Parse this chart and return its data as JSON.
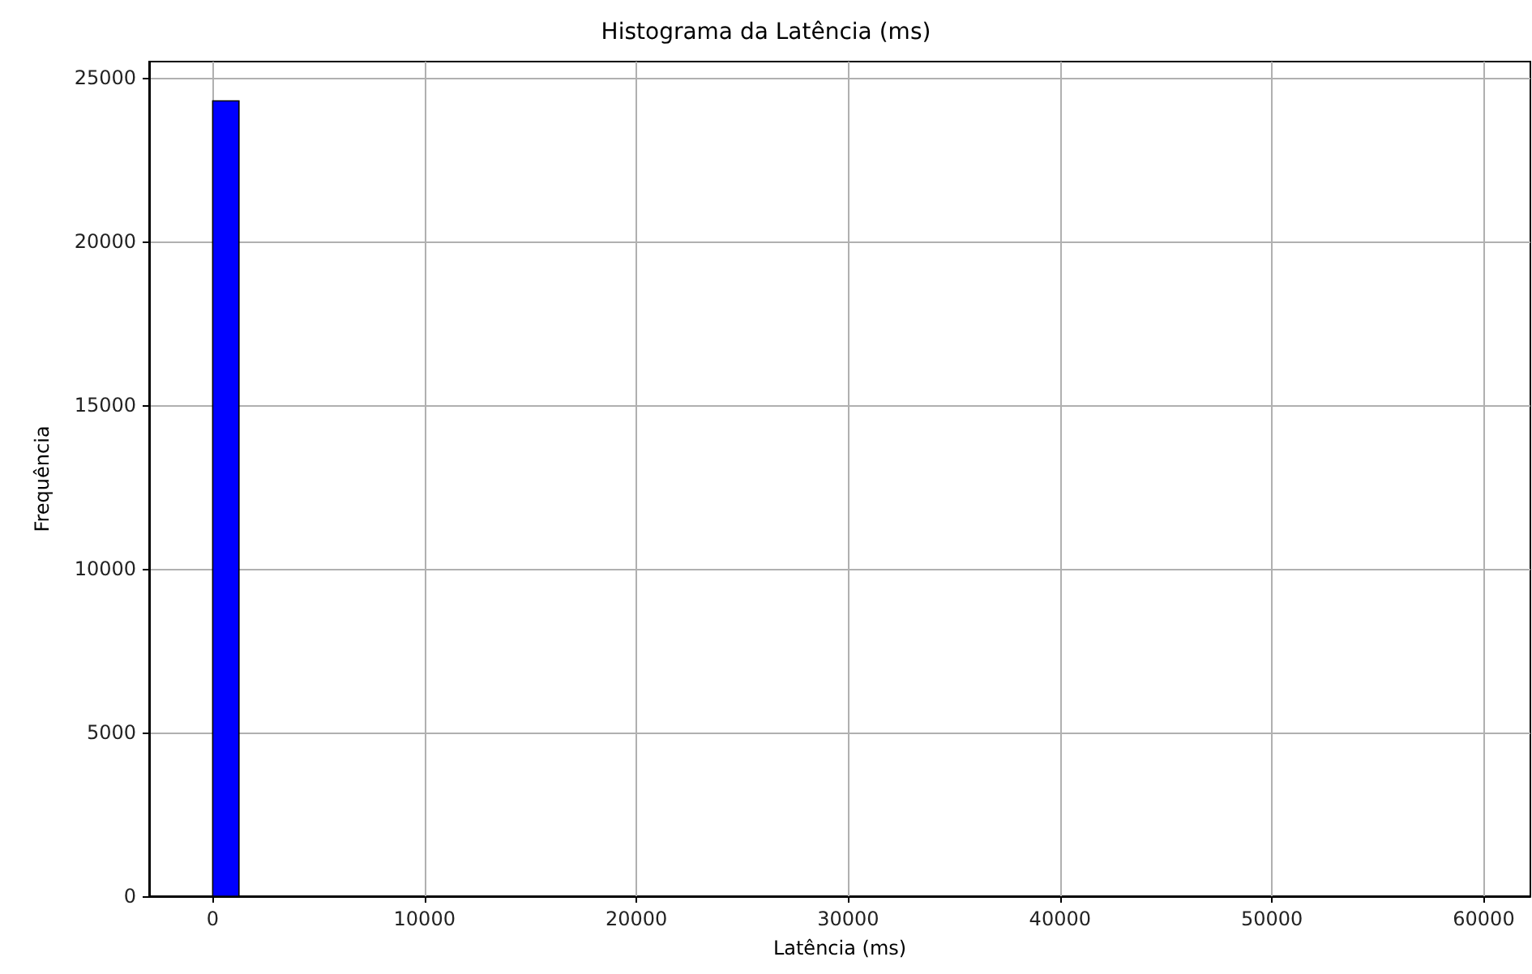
{
  "chart_data": {
    "type": "histogram",
    "title": "Histograma da Latência (ms)",
    "xlabel": "Latência (ms)",
    "ylabel": "Frequência",
    "bins": [
      0,
      1240,
      2480,
      3720,
      4960,
      6200,
      7440,
      8680,
      9920,
      11160,
      12400,
      13640,
      14880,
      16120,
      17360,
      18600,
      19840,
      21080,
      22320,
      23560,
      24800,
      26040,
      27280,
      28520,
      29760,
      31000,
      32240,
      33480,
      34720,
      35960,
      37200,
      38440,
      39680,
      40920,
      42160,
      43400,
      44640,
      45880,
      47120,
      48360,
      49600,
      50840,
      52080,
      53320,
      54560,
      55800,
      57040,
      58280,
      59520,
      60760,
      62000
    ],
    "values": [
      24300,
      0,
      0,
      0,
      0,
      0,
      0,
      0,
      0,
      0,
      0,
      0,
      0,
      0,
      0,
      0,
      0,
      0,
      0,
      0,
      0,
      0,
      0,
      0,
      0,
      0,
      0,
      0,
      0,
      0,
      0,
      0,
      0,
      0,
      0,
      0,
      0,
      0,
      0,
      0,
      0,
      0,
      0,
      0,
      0,
      0,
      0,
      0,
      0,
      0
    ],
    "color": "#0000ff",
    "xlim": [
      -3000,
      62200
    ],
    "xticks": [
      0,
      10000,
      20000,
      30000,
      40000,
      50000,
      60000
    ],
    "ylim": [
      0,
      25500
    ],
    "yticks": [
      0,
      5000,
      10000,
      15000,
      20000,
      25000
    ],
    "grid": true
  }
}
